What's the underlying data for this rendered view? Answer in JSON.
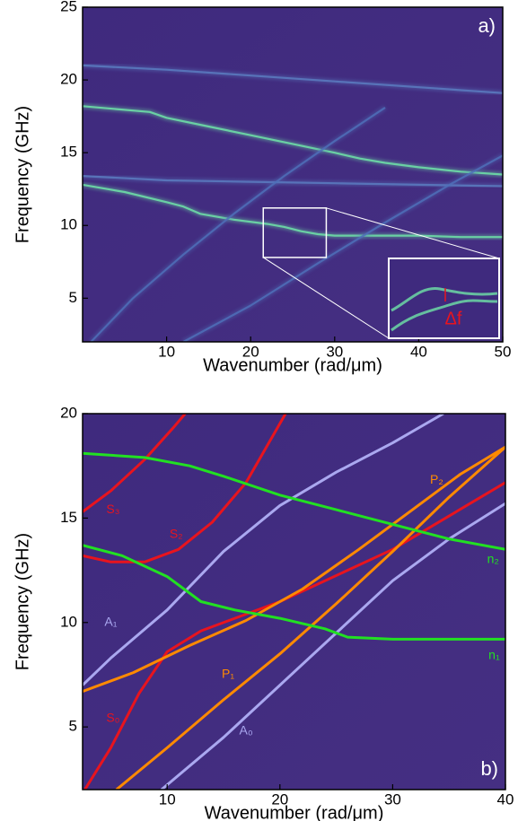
{
  "chart_data": [
    {
      "type": "line",
      "panel_label": "a)",
      "xlabel": "Wavenumber (rad/μm)",
      "ylabel": "Frequency (GHz)",
      "xlim": [
        0,
        50
      ],
      "ylim": [
        2,
        25
      ],
      "xticks": [
        10,
        20,
        30,
        40,
        50
      ],
      "yticks": [
        5,
        10,
        15,
        20,
        25
      ],
      "annotation": "Δf",
      "series": [
        {
          "color": "#6fe3a8",
          "x": [
            0,
            8,
            10,
            15,
            20,
            25,
            30,
            33,
            36,
            40,
            45,
            50
          ],
          "values": [
            18.2,
            17.8,
            17.4,
            16.8,
            16.2,
            15.6,
            15,
            14.6,
            14.3,
            14,
            13.7,
            13.5
          ]
        },
        {
          "color": "#6fe3a8",
          "x": [
            0,
            5,
            10,
            12,
            14,
            18,
            22,
            24,
            26,
            28,
            30,
            35,
            40,
            45,
            50
          ],
          "values": [
            12.8,
            12.3,
            11.6,
            11.3,
            10.8,
            10.4,
            10.1,
            9.9,
            9.6,
            9.4,
            9.3,
            9.3,
            9.3,
            9.2,
            9.2
          ]
        },
        {
          "color": "#5a7bc0",
          "x": [
            0,
            10,
            20,
            30,
            40,
            50
          ],
          "values": [
            21,
            20.7,
            20.3,
            19.9,
            19.5,
            19.1
          ]
        },
        {
          "color": "#5a7bc0",
          "x": [
            0,
            10,
            20,
            30,
            40,
            50
          ],
          "values": [
            13.4,
            13.1,
            13,
            12.9,
            12.8,
            12.7
          ]
        },
        {
          "color": "#4f6fb8",
          "x": [
            1,
            6,
            12,
            18,
            24,
            30,
            36
          ],
          "values": [
            2,
            5,
            8,
            10.8,
            13.4,
            15.8,
            18.1
          ]
        },
        {
          "color": "#4f6fb8",
          "x": [
            12,
            20,
            28,
            36,
            44,
            50
          ],
          "values": [
            2,
            4.5,
            7.4,
            10.2,
            12.9,
            14.8
          ]
        }
      ]
    },
    {
      "type": "line",
      "panel_label": "b)",
      "xlabel": "Wavenumber (rad/μm)",
      "ylabel": "Frequency (GHz)",
      "xlim": [
        2.5,
        40
      ],
      "ylim": [
        2,
        20
      ],
      "xticks": [
        10,
        20,
        30,
        40
      ],
      "yticks": [
        5,
        10,
        15,
        20
      ],
      "series": [
        {
          "name": "S₃",
          "color": "#e8141e",
          "x": [
            2.5,
            5,
            8,
            10.5,
            11.6
          ],
          "values": [
            15.3,
            16.3,
            17.8,
            19.3,
            20
          ]
        },
        {
          "name": "S₂",
          "color": "#e8141e",
          "x": [
            2.5,
            5,
            8,
            11,
            14,
            17,
            20.5
          ],
          "values": [
            13.2,
            12.9,
            12.9,
            13.5,
            14.8,
            16.7,
            20
          ]
        },
        {
          "name": "S₀",
          "color": "#e8141e",
          "x": [
            2.7,
            5,
            7.5,
            10,
            13,
            20,
            30,
            40
          ],
          "values": [
            2,
            4,
            6.6,
            8.6,
            9.6,
            11,
            13.5,
            16.7
          ]
        },
        {
          "name": "A₁",
          "color": "#aaa8f0",
          "x": [
            2.5,
            5,
            10,
            15,
            20,
            25,
            30,
            34.5
          ],
          "values": [
            7,
            8.3,
            10.6,
            13.4,
            15.6,
            17.2,
            18.6,
            20
          ]
        },
        {
          "name": "A₀",
          "color": "#aaa8f0",
          "x": [
            9.5,
            15,
            20,
            25,
            30,
            35,
            40
          ],
          "values": [
            2,
            4.5,
            7,
            9.5,
            12,
            14,
            15.7
          ]
        },
        {
          "name": "P₁",
          "color": "#ff8a00",
          "x": [
            5.5,
            10,
            15,
            20,
            25,
            30,
            35,
            40
          ],
          "values": [
            2,
            4,
            6.3,
            8.5,
            10.9,
            13.4,
            16,
            18.4
          ]
        },
        {
          "name": "P₂",
          "color": "#ff8a00",
          "x": [
            2.5,
            7,
            12,
            17,
            22,
            27,
            32,
            36,
            40
          ],
          "values": [
            6.7,
            7.6,
            8.9,
            10.1,
            11.6,
            13.5,
            15.5,
            17.1,
            18.4
          ]
        },
        {
          "name": "n₂",
          "color": "#22e022",
          "x": [
            2.5,
            8,
            12,
            15,
            20,
            25,
            30,
            35,
            40
          ],
          "values": [
            18.1,
            17.9,
            17.5,
            17,
            16.1,
            15.4,
            14.7,
            14,
            13.5
          ]
        },
        {
          "name": "n₁",
          "color": "#22e022",
          "x": [
            2.5,
            6,
            10,
            13,
            16,
            20,
            24,
            26,
            30,
            40
          ],
          "values": [
            13.7,
            13.2,
            12.2,
            11,
            10.6,
            10.2,
            9.7,
            9.3,
            9.2,
            9.2
          ]
        }
      ]
    }
  ]
}
